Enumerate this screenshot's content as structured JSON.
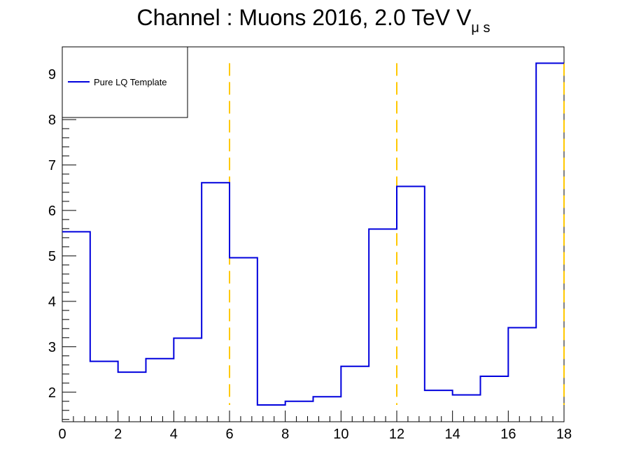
{
  "chart_data": {
    "type": "line",
    "title": "Channel : Muons 2016, 2.0 TeV V",
    "title_subscript": "μ s",
    "xlabel": "",
    "ylabel": "",
    "xlim": [
      0,
      18
    ],
    "ylim": [
      1.35,
      9.6
    ],
    "x_ticks": [
      0,
      2,
      4,
      6,
      8,
      10,
      12,
      14,
      16,
      18
    ],
    "y_ticks": [
      2,
      3,
      4,
      5,
      6,
      7,
      8,
      9
    ],
    "grid": false,
    "legend_position": "top-left",
    "series": [
      {
        "name": "Pure LQ Template",
        "style": "step",
        "color": "#0000dd",
        "bin_edges": [
          0,
          1,
          2,
          3,
          4,
          5,
          6,
          7,
          8,
          9,
          10,
          11,
          12,
          13,
          14,
          15,
          16,
          17,
          18
        ],
        "values": [
          5.53,
          2.68,
          2.44,
          2.74,
          3.19,
          6.61,
          4.96,
          1.72,
          1.8,
          1.9,
          2.57,
          5.59,
          6.53,
          2.04,
          1.94,
          2.35,
          3.42,
          9.24
        ]
      }
    ],
    "vertical_lines": {
      "x": [
        6,
        12,
        18
      ],
      "y_range": [
        1.72,
        9.24
      ],
      "color": "#ffc800",
      "style": "dashed"
    }
  }
}
